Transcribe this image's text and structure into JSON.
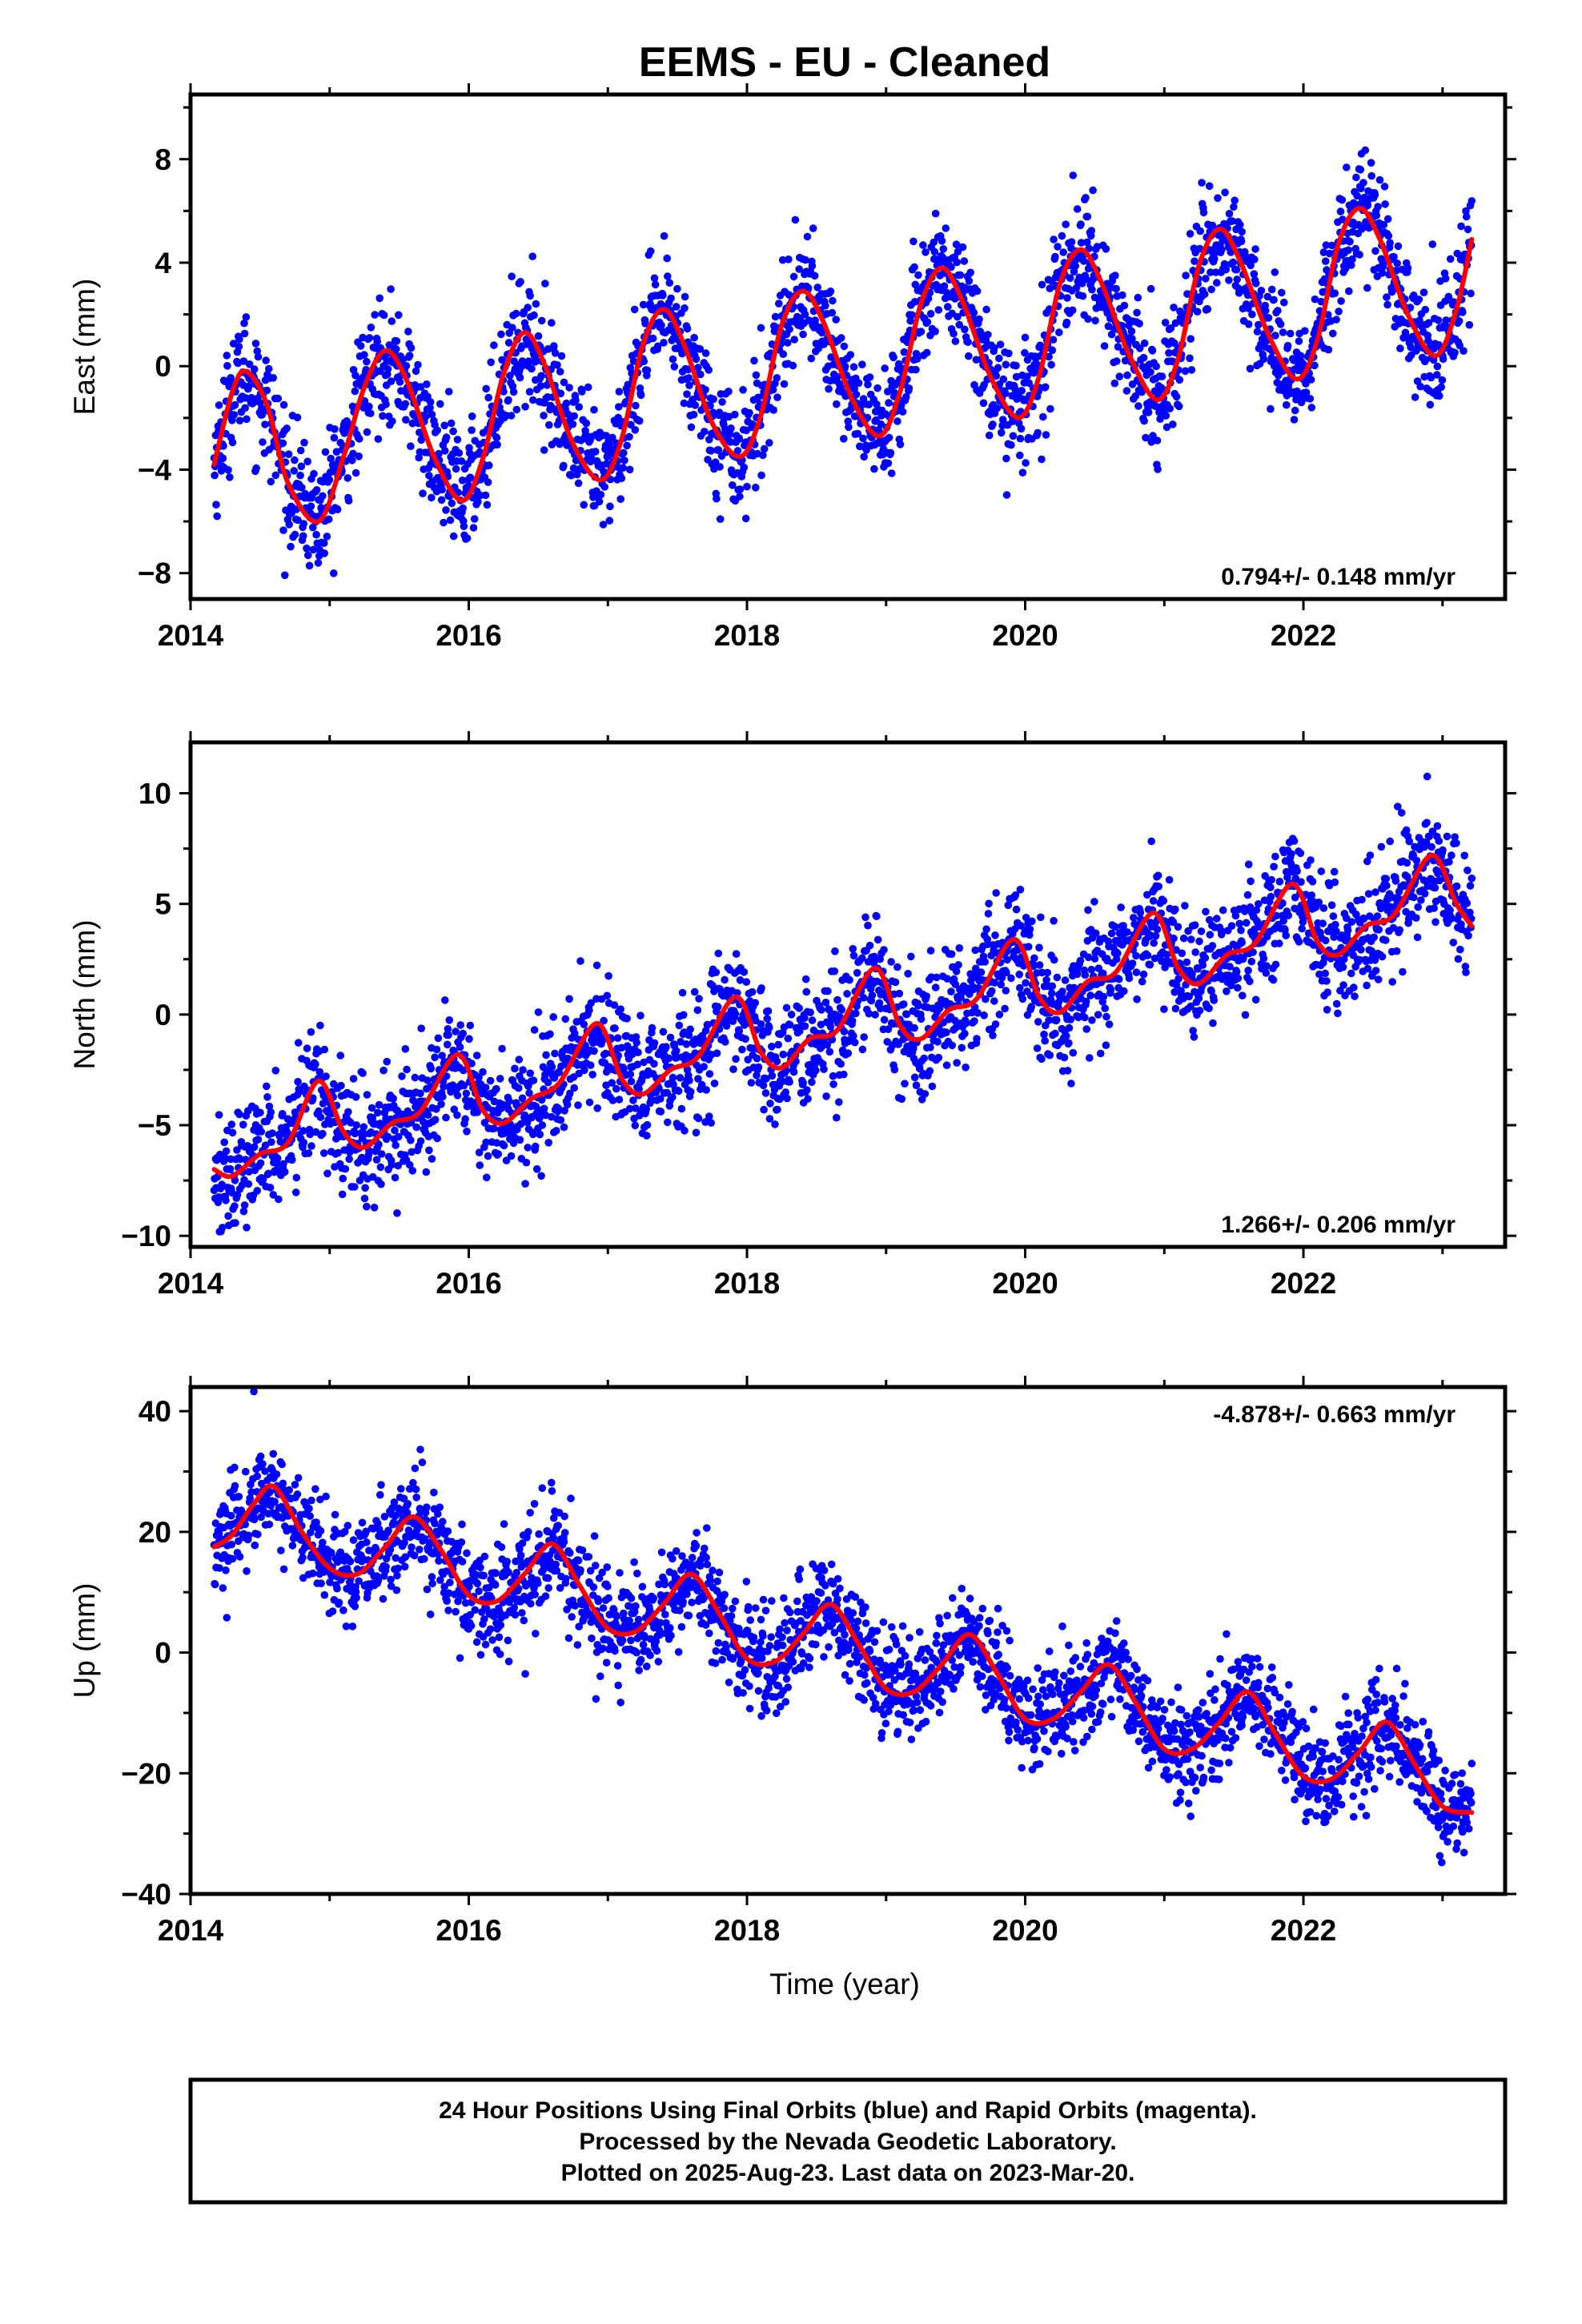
{
  "title": "EEMS  - EU - Cleaned",
  "xlabel": "Time (year)",
  "colors": {
    "points": "#0000ff",
    "fit": "#ff0000",
    "frame": "#000000"
  },
  "footer": {
    "lines": [
      "24 Hour Positions Using Final Orbits (blue) and Rapid Orbits (magenta).",
      "Processed by the Nevada Geodetic Laboratory.",
      "Plotted on 2025-Aug-23. Last data on 2023-Mar-20."
    ]
  },
  "chart_data": [
    {
      "type": "scatter",
      "name": "east",
      "ylabel": "East (mm)",
      "xlim": [
        2014.0,
        2023.45
      ],
      "ylim": [
        -9,
        10.5
      ],
      "x_ticks": [
        2014,
        2016,
        2018,
        2020,
        2022
      ],
      "x_tick_labels": [
        "2014",
        "2016",
        "2018",
        "2020",
        "2022"
      ],
      "y_ticks": [
        -8,
        -4,
        0,
        4,
        8
      ],
      "y_tick_labels": [
        "−8",
        "−4",
        "0",
        "4",
        "8"
      ],
      "rate_label": "0.794+/- 0.148 mm/yr",
      "rate_position": "bottom-right",
      "fit_x": [
        2014.17,
        2014.3,
        2014.4,
        2014.55,
        2014.7,
        2014.92,
        2015.1,
        2015.25,
        2015.4,
        2015.55,
        2015.75,
        2015.95,
        2016.1,
        2016.25,
        2016.4,
        2016.55,
        2016.75,
        2016.95,
        2017.1,
        2017.25,
        2017.4,
        2017.55,
        2017.75,
        2017.95,
        2018.1,
        2018.25,
        2018.4,
        2018.55,
        2018.75,
        2018.95,
        2019.1,
        2019.25,
        2019.4,
        2019.55,
        2019.75,
        2019.95,
        2020.1,
        2020.25,
        2020.4,
        2020.55,
        2020.75,
        2020.95,
        2021.1,
        2021.25,
        2021.4,
        2021.55,
        2021.75,
        2021.95,
        2022.1,
        2022.25,
        2022.4,
        2022.55,
        2022.75,
        2022.95,
        2023.1,
        2023.21
      ],
      "fit_y": [
        -3.8,
        -1.0,
        -0.2,
        -1.5,
        -4.5,
        -6.0,
        -3.5,
        -0.8,
        0.6,
        -0.5,
        -3.5,
        -5.2,
        -3.6,
        -0.3,
        1.3,
        0.0,
        -3.0,
        -4.4,
        -2.8,
        0.8,
        2.2,
        0.8,
        -2.2,
        -3.5,
        -1.9,
        1.6,
        2.9,
        1.7,
        -1.2,
        -2.7,
        -1.0,
        2.4,
        3.8,
        2.5,
        -0.4,
        -2.0,
        -0.4,
        3.2,
        4.5,
        3.2,
        0.4,
        -1.3,
        0.3,
        3.9,
        5.3,
        4.0,
        1.2,
        -0.5,
        1.0,
        4.7,
        6.1,
        4.9,
        2.0,
        0.4,
        2.2,
        4.9
      ],
      "amplitude_note": "",
      "scatter_points": 2600
    },
    {
      "type": "scatter",
      "name": "north",
      "ylabel": "North (mm)",
      "xlim": [
        2014.0,
        2023.45
      ],
      "ylim": [
        -10.5,
        12.3
      ],
      "x_ticks": [
        2014,
        2016,
        2018,
        2020,
        2022
      ],
      "x_tick_labels": [
        "2014",
        "2016",
        "2018",
        "2020",
        "2022"
      ],
      "y_ticks": [
        -10,
        -5,
        0,
        5,
        10
      ],
      "y_tick_labels": [
        "−10",
        "−5",
        "0",
        "5",
        "10"
      ],
      "rate_label": "1.266+/- 0.206 mm/yr",
      "rate_position": "bottom-right",
      "fit_x": [
        2014.17,
        2014.3,
        2014.5,
        2014.7,
        2014.92,
        2015.1,
        2015.25,
        2015.45,
        2015.65,
        2015.92,
        2016.1,
        2016.25,
        2016.45,
        2016.65,
        2016.92,
        2017.1,
        2017.25,
        2017.45,
        2017.65,
        2017.92,
        2018.1,
        2018.25,
        2018.45,
        2018.65,
        2018.92,
        2019.1,
        2019.25,
        2019.45,
        2019.65,
        2019.92,
        2020.1,
        2020.25,
        2020.45,
        2020.65,
        2020.92,
        2021.1,
        2021.25,
        2021.45,
        2021.65,
        2021.92,
        2022.1,
        2022.25,
        2022.45,
        2022.65,
        2022.92,
        2023.1,
        2023.21
      ],
      "fit_y": [
        -7.0,
        -7.3,
        -6.3,
        -5.8,
        -3.0,
        -5.3,
        -6.0,
        -4.9,
        -4.4,
        -1.8,
        -4.3,
        -4.9,
        -3.8,
        -3.1,
        -0.4,
        -2.9,
        -3.6,
        -2.5,
        -1.9,
        0.8,
        -1.7,
        -2.4,
        -1.1,
        -0.7,
        2.1,
        -0.5,
        -1.1,
        0.2,
        0.7,
        3.4,
        0.8,
        0.1,
        1.5,
        1.9,
        4.6,
        2.1,
        1.4,
        2.7,
        3.2,
        5.9,
        3.3,
        2.7,
        4.0,
        4.5,
        7.2,
        5.0,
        4.0
      ],
      "scatter_points": 2600
    },
    {
      "type": "scatter",
      "name": "up",
      "ylabel": "Up (mm)",
      "xlim": [
        2014.0,
        2023.45
      ],
      "ylim": [
        -40,
        44
      ],
      "x_ticks": [
        2014,
        2016,
        2018,
        2020,
        2022
      ],
      "x_tick_labels": [
        "2014",
        "2016",
        "2018",
        "2020",
        "2022"
      ],
      "y_ticks": [
        -40,
        -20,
        0,
        20,
        40
      ],
      "y_tick_labels": [
        "−40",
        "−20",
        "0",
        "20",
        "40"
      ],
      "rate_label": "-4.878+/- 0.663 mm/yr",
      "rate_position": "top-right",
      "fit_x": [
        2014.17,
        2014.3,
        2014.45,
        2014.6,
        2014.8,
        2015.0,
        2015.2,
        2015.4,
        2015.6,
        2015.8,
        2016.0,
        2016.2,
        2016.4,
        2016.6,
        2016.8,
        2017.0,
        2017.2,
        2017.4,
        2017.6,
        2017.8,
        2018.0,
        2018.2,
        2018.4,
        2018.6,
        2018.8,
        2019.0,
        2019.2,
        2019.4,
        2019.6,
        2019.8,
        2020.0,
        2020.2,
        2020.4,
        2020.6,
        2020.8,
        2021.0,
        2021.2,
        2021.4,
        2021.6,
        2021.8,
        2022.0,
        2022.2,
        2022.4,
        2022.6,
        2022.8,
        2023.0,
        2023.21
      ],
      "fit_y": [
        17.5,
        19.5,
        24.5,
        27.5,
        20.0,
        14.0,
        13.0,
        17.5,
        22.5,
        17.0,
        9.5,
        8.5,
        13.0,
        18.0,
        11.0,
        4.0,
        3.5,
        8.0,
        13.0,
        6.5,
        -1.0,
        -1.5,
        3.0,
        8.0,
        1.5,
        -6.0,
        -6.5,
        -2.0,
        3.0,
        -3.5,
        -11.0,
        -11.0,
        -6.5,
        -2.0,
        -8.5,
        -16.0,
        -16.0,
        -11.5,
        -6.5,
        -13.5,
        -20.5,
        -21.0,
        -16.5,
        -11.5,
        -18.5,
        -25.5,
        -26.5
      ],
      "scatter_points": 2600
    }
  ]
}
